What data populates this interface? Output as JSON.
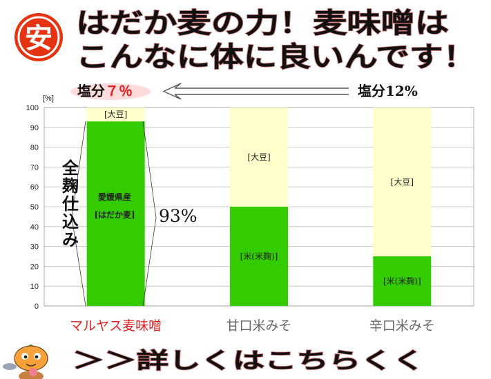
{
  "header": {
    "badge_char": "安",
    "line1": "はだか麦の力！麦味噌は",
    "line2": "こんなに体に良いんです！"
  },
  "salt": {
    "left_prefix": "塩分",
    "left_value": "７％",
    "right": "塩分12%"
  },
  "side_note": {
    "lines": [
      "全",
      "麹",
      "仕",
      "込",
      "み"
    ],
    "percent": "93%"
  },
  "bar_inner": {
    "line1": "愛媛県産",
    "line2": "[はだか麦]"
  },
  "footer": {
    "cta": "＞＞詳しくはこちらくく"
  },
  "colors": {
    "green": "#33cc00",
    "cream": "#ffffcc",
    "accent_red": "#e02020",
    "gray": "#666666"
  },
  "chart_data": {
    "type": "bar",
    "stacked": true,
    "ylabel": "[%]",
    "ylim": [
      0,
      100
    ],
    "yticks": [
      0,
      10,
      20,
      30,
      40,
      50,
      60,
      70,
      80,
      90,
      100
    ],
    "grid": true,
    "categories": [
      "マルヤス麦味噌",
      "甘口米みそ",
      "辛口米みそ"
    ],
    "category_colors": [
      "#e02020",
      "#666666",
      "#666666"
    ],
    "series": [
      {
        "values": [
          93,
          50,
          25
        ],
        "labels": [
          "",
          "[米(米麹)]",
          "[米(米麹)]"
        ],
        "color": "#33cc00"
      },
      {
        "values": [
          7,
          50,
          75
        ],
        "labels": [
          "[大豆]",
          "[大豆]",
          "[大豆]"
        ],
        "color": "#ffffcc"
      }
    ]
  }
}
